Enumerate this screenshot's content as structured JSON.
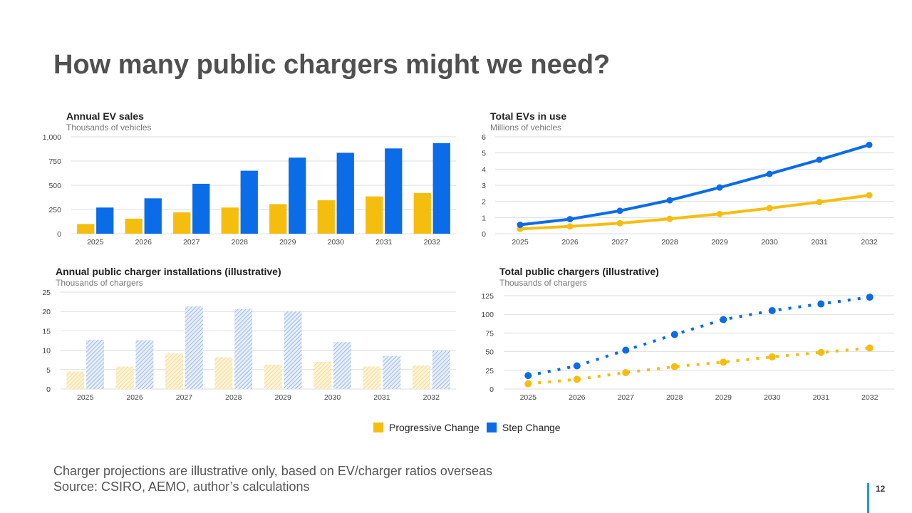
{
  "page": {
    "title": "How many public chargers might we need?",
    "footnote_line1": "Charger projections are illustrative only, based on EV/charger ratios overseas",
    "footnote_line2": "Source: CSIRO, AEMO, author’s calculations",
    "page_number": "12"
  },
  "legend": [
    {
      "label": "Progressive Change",
      "color": "#F5BE0F"
    },
    {
      "label": "Step Change",
      "color": "#0A6CE6"
    }
  ],
  "colors": {
    "progressive": "#F5BE0F",
    "step": "#0A6CE6",
    "progressive_light": "#F3E2A6",
    "step_light": "#9DB9E6"
  },
  "chart_data": [
    {
      "type": "bar",
      "title": "Annual EV sales",
      "subtitle": "Thousands of vehicles",
      "categories": [
        "2025",
        "2026",
        "2027",
        "2028",
        "2029",
        "2030",
        "2031",
        "2032"
      ],
      "series": [
        {
          "name": "Progressive Change",
          "values": [
            100,
            155,
            220,
            270,
            305,
            345,
            385,
            420
          ]
        },
        {
          "name": "Step Change",
          "values": [
            270,
            365,
            515,
            650,
            785,
            835,
            880,
            935
          ]
        }
      ],
      "ylim": [
        0,
        1000
      ],
      "yticks": [
        0,
        250,
        500,
        750,
        1000
      ],
      "ytick_labels": [
        "0",
        "250",
        "500",
        "750",
        "1,000"
      ],
      "grid": true
    },
    {
      "type": "line",
      "title": "Total EVs in use",
      "subtitle": "Millions of vehicles",
      "categories": [
        "2025",
        "2026",
        "2027",
        "2028",
        "2029",
        "2030",
        "2031",
        "2032"
      ],
      "series": [
        {
          "name": "Progressive Change",
          "values": [
            0.3,
            0.45,
            0.65,
            0.92,
            1.22,
            1.58,
            1.96,
            2.38
          ]
        },
        {
          "name": "Step Change",
          "values": [
            0.55,
            0.9,
            1.42,
            2.07,
            2.86,
            3.7,
            4.58,
            5.5
          ]
        }
      ],
      "ylim": [
        0,
        6
      ],
      "yticks": [
        0,
        1,
        2,
        3,
        4,
        5,
        6
      ],
      "ytick_labels": [
        "0",
        "1",
        "2",
        "3",
        "4",
        "5",
        "6"
      ],
      "grid": true
    },
    {
      "type": "bar",
      "title": "Annual public charger installations (illustrative)",
      "subtitle": "Thousands of chargers",
      "categories": [
        "2025",
        "2026",
        "2027",
        "2028",
        "2029",
        "2030",
        "2031",
        "2032"
      ],
      "series": [
        {
          "name": "Progressive Change",
          "values": [
            4.5,
            5.8,
            9.2,
            8.2,
            6.3,
            7.0,
            5.8,
            6.1
          ]
        },
        {
          "name": "Step Change",
          "values": [
            12.7,
            12.6,
            21.3,
            20.7,
            20.0,
            12.1,
            8.5,
            9.9
          ]
        }
      ],
      "ylim": [
        0,
        25
      ],
      "yticks": [
        0,
        5,
        10,
        15,
        20,
        25
      ],
      "ytick_labels": [
        "0",
        "5",
        "10",
        "15",
        "20",
        "25"
      ],
      "grid": true
    },
    {
      "type": "line",
      "title": "Total public chargers (illustrative)",
      "subtitle": "Thousands of chargers",
      "categories": [
        "2025",
        "2026",
        "2027",
        "2028",
        "2029",
        "2030",
        "2031",
        "2032"
      ],
      "series": [
        {
          "name": "Progressive Change",
          "values": [
            7,
            13,
            22,
            30,
            36,
            43,
            49,
            55
          ]
        },
        {
          "name": "Step Change",
          "values": [
            18,
            31,
            52,
            73,
            93,
            105,
            114,
            123
          ]
        }
      ],
      "ylim": [
        0,
        125
      ],
      "yticks": [
        0,
        25,
        50,
        75,
        100,
        125
      ],
      "ytick_labels": [
        "0",
        "25",
        "50",
        "75",
        "100",
        "125"
      ],
      "grid": true
    }
  ]
}
